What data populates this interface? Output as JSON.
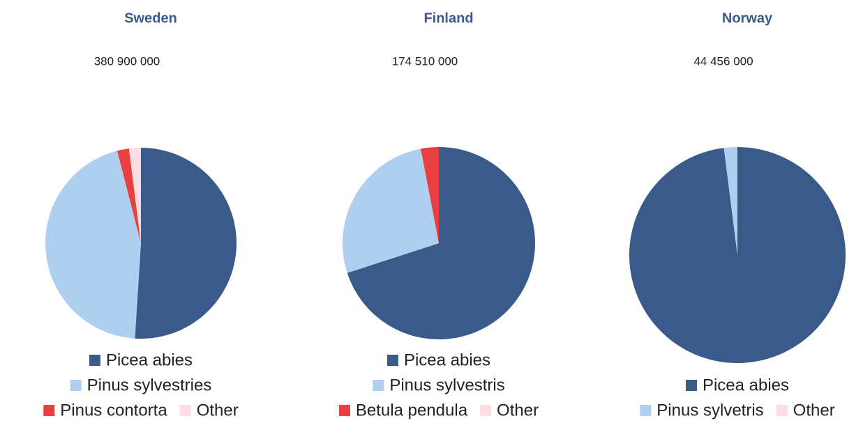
{
  "chart_data": [
    {
      "type": "pie",
      "title": "Sweden",
      "subtitle": "380 900 000",
      "categories": [
        "Picea abies",
        "Pinus sylvestries",
        "Pinus contorta",
        "Other"
      ],
      "values": [
        51,
        45,
        2,
        2
      ],
      "colors": [
        "#3a5a8a",
        "#aecff0",
        "#e84040",
        "#fddde2"
      ]
    },
    {
      "type": "pie",
      "title": "Finland",
      "subtitle": "174 510 000",
      "categories": [
        "Picea abies",
        "Pinus sylvestris",
        "Betula pendula",
        "Other"
      ],
      "values": [
        70,
        27,
        3,
        0
      ],
      "colors": [
        "#3a5a8a",
        "#aecff0",
        "#e84040",
        "#fddde2"
      ]
    },
    {
      "type": "pie",
      "title": "Norway",
      "subtitle": "44 456 000",
      "categories": [
        "Picea abies",
        "Pinus sylvetris",
        "Other"
      ],
      "values": [
        98,
        2,
        0
      ],
      "colors": [
        "#3a5a8a",
        "#aecff0",
        "#fddde2"
      ]
    }
  ]
}
